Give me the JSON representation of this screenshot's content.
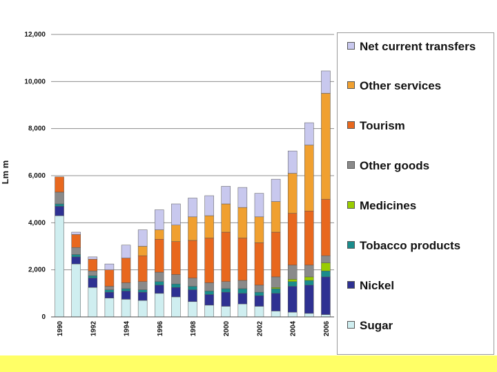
{
  "chart_data": {
    "type": "bar",
    "stacked": true,
    "ylabel": "Lm m",
    "ylim": [
      0,
      12000
    ],
    "yticks": [
      0,
      2000,
      4000,
      6000,
      8000,
      10000,
      12000
    ],
    "ytick_labels": [
      "0",
      "2,000",
      "4,000",
      "6,000",
      "8,000",
      "10,000",
      "12,000"
    ],
    "grid": true,
    "legend_position": "right",
    "categories": [
      "1990",
      "1991",
      "1992",
      "1993",
      "1994",
      "1995",
      "1996",
      "1997",
      "1998",
      "1999",
      "2000",
      "2001",
      "2002",
      "2003",
      "2004",
      "2005",
      "2006"
    ],
    "xtick_labels": [
      "1990",
      "",
      "1992",
      "",
      "1994",
      "",
      "1996",
      "",
      "1998",
      "",
      "2000",
      "",
      "2002",
      "",
      "2004",
      "",
      "2006"
    ],
    "series": [
      {
        "name": "Sugar",
        "color": "#cfeef0",
        "values": [
          4300,
          2250,
          1250,
          800,
          750,
          700,
          1000,
          850,
          650,
          500,
          450,
          550,
          450,
          250,
          200,
          150,
          100
        ]
      },
      {
        "name": "Nickel",
        "color": "#2e3192",
        "values": [
          400,
          300,
          400,
          250,
          350,
          350,
          350,
          400,
          500,
          450,
          600,
          450,
          450,
          750,
          1100,
          1200,
          1600
        ]
      },
      {
        "name": "Tobacco products",
        "color": "#1a8c8c",
        "values": [
          100,
          100,
          100,
          100,
          100,
          100,
          150,
          150,
          150,
          150,
          150,
          200,
          150,
          200,
          200,
          200,
          250
        ]
      },
      {
        "name": "Medicines",
        "color": "#99cc00",
        "values": [
          0,
          0,
          0,
          0,
          0,
          0,
          0,
          0,
          0,
          0,
          0,
          0,
          0,
          50,
          100,
          150,
          350
        ]
      },
      {
        "name": "Other goods",
        "color": "#8a8a8a",
        "values": [
          500,
          300,
          200,
          150,
          250,
          350,
          400,
          400,
          350,
          350,
          300,
          350,
          300,
          450,
          600,
          500,
          300
        ]
      },
      {
        "name": "Tourism",
        "color": "#e8681e",
        "values": [
          650,
          550,
          500,
          700,
          1050,
          1100,
          1400,
          1400,
          1600,
          1900,
          2100,
          1800,
          1800,
          1900,
          2200,
          2300,
          2400
        ]
      },
      {
        "name": "Other services",
        "color": "#f0a030",
        "values": [
          0,
          0,
          0,
          0,
          0,
          400,
          400,
          700,
          1000,
          950,
          1200,
          1300,
          1100,
          1300,
          1700,
          2800,
          4500
        ]
      },
      {
        "name": "Net current transfers",
        "color": "#c8c8ee",
        "values": [
          0,
          100,
          100,
          250,
          550,
          700,
          850,
          900,
          800,
          850,
          750,
          850,
          1000,
          950,
          950,
          950,
          950
        ]
      }
    ]
  },
  "legend": {
    "items": [
      {
        "label": "Net current transfers",
        "color": "#c8c8ee",
        "top": 8
      },
      {
        "label": "Other services",
        "color": "#f0a030",
        "top": 65
      },
      {
        "label": "Tourism",
        "color": "#e8681e",
        "top": 123
      },
      {
        "label": "Other goods",
        "color": "#8a8a8a",
        "top": 181
      },
      {
        "label": "Medicines",
        "color": "#99cc00",
        "top": 239
      },
      {
        "label": "Tobacco products",
        "color": "#1a8c8c",
        "top": 297
      },
      {
        "label": "Nickel",
        "color": "#2e3192",
        "top": 355
      },
      {
        "label": "Sugar",
        "color": "#cfeef0",
        "top": 413
      }
    ]
  }
}
